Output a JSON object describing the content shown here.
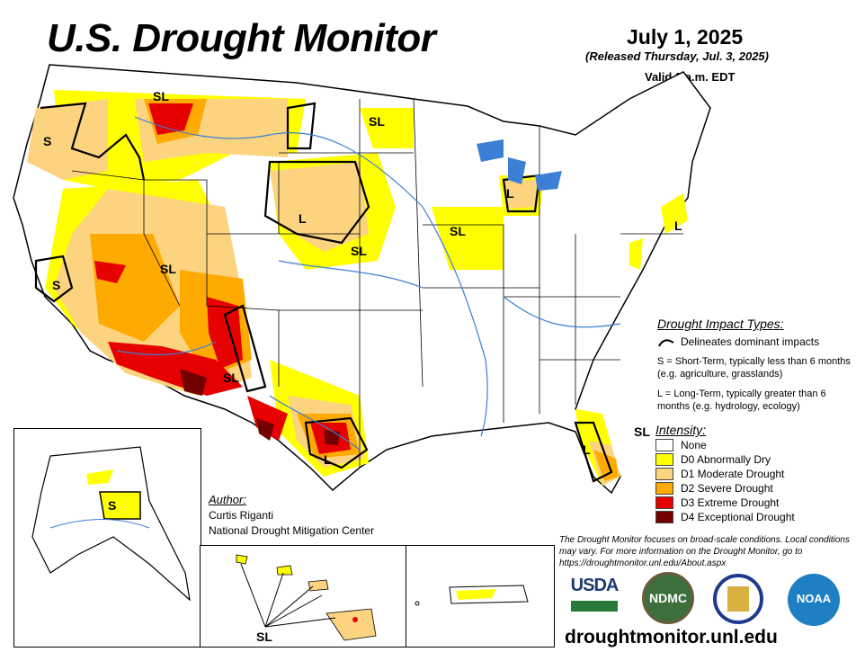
{
  "header": {
    "title": "U.S. Drought Monitor",
    "date": "July 1, 2025",
    "released": "(Released Thursday, Jul. 3, 2025)",
    "valid": "Valid 8 a.m. EDT"
  },
  "impact_legend": {
    "heading": "Drought Impact Types:",
    "line_label": "Delineates dominant impacts",
    "short_term": "S = Short-Term, typically less than 6 months (e.g. agriculture, grasslands)",
    "long_term": "L = Long-Term, typically greater than 6 months (e.g. hydrology, ecology)"
  },
  "intensity_legend": {
    "heading": "Intensity:",
    "items": [
      {
        "label": "None",
        "color": "#ffffff"
      },
      {
        "label": "D0 Abnormally Dry",
        "color": "#ffff00"
      },
      {
        "label": "D1 Moderate Drought",
        "color": "#fcd37f"
      },
      {
        "label": "D2 Severe Drought",
        "color": "#ffaa00"
      },
      {
        "label": "D3 Extreme Drought",
        "color": "#e60000"
      },
      {
        "label": "D4 Exceptional Drought",
        "color": "#730000"
      }
    ]
  },
  "map_labels": [
    "S",
    "SL",
    "SL",
    "L",
    "SL",
    "SL",
    "L",
    "SL",
    "SL",
    "L",
    "L",
    "SL",
    "S",
    "L",
    "S",
    "SL"
  ],
  "author": {
    "heading": "Author:",
    "name": "Curtis Riganti",
    "org": "National Drought Mitigation Center"
  },
  "note": "The Drought Monitor focuses on broad-scale conditions. Local conditions may vary. For more information on the Drought Monitor, go to https://droughtmonitor.unl.edu/About.aspx",
  "url": "droughtmonitor.unl.edu",
  "logos": {
    "usda": "USDA",
    "ndmc": "NDMC",
    "commerce": "Department of Commerce seal",
    "noaa": "NOAA"
  },
  "colors": {
    "d0": "#ffff00",
    "d1": "#fcd37f",
    "d2": "#ffaa00",
    "d3": "#e60000",
    "d4": "#730000",
    "water": "#3b7fd6"
  }
}
